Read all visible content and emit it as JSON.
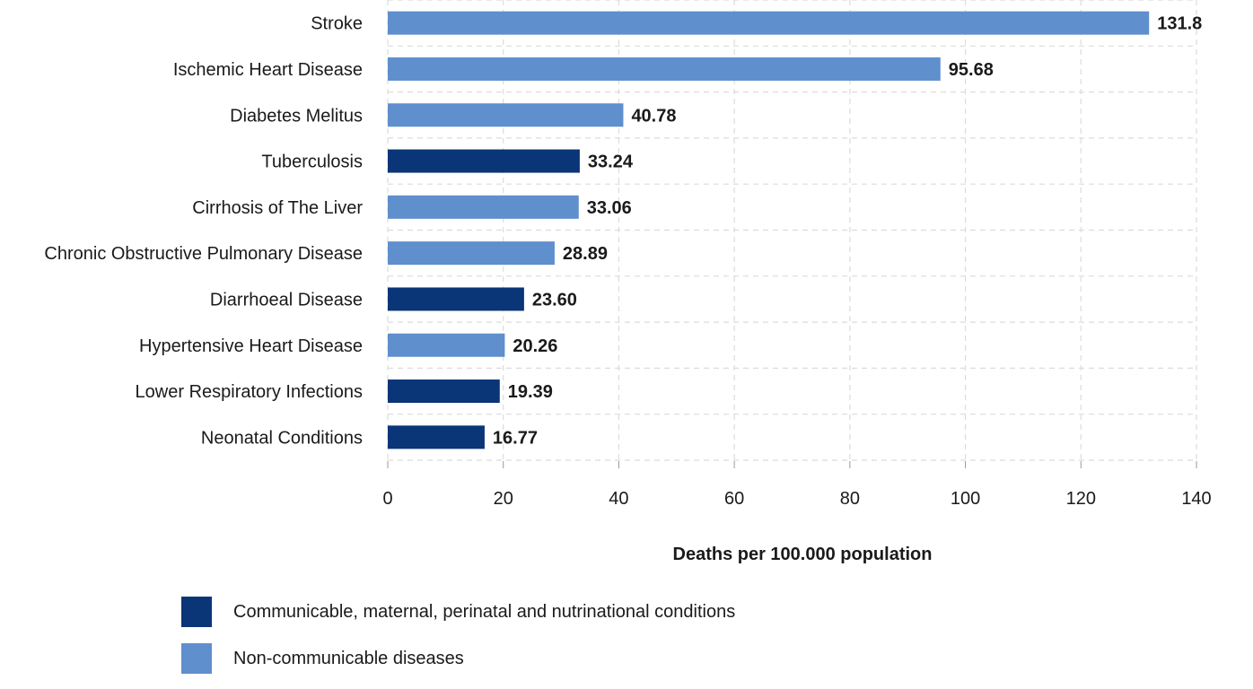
{
  "chart_data": {
    "type": "bar",
    "orientation": "horizontal",
    "categories": [
      "Stroke",
      "Ischemic Heart Disease",
      "Diabetes Melitus",
      "Tuberculosis",
      "Cirrhosis of The Liver",
      "Chronic  Obstructive Pulmonary Disease",
      "Diarrhoeal Disease",
      "Hypertensive Heart Disease",
      "Lower Respiratory Infections",
      "Neonatal Conditions"
    ],
    "values": [
      131.8,
      95.68,
      40.78,
      33.24,
      33.06,
      28.89,
      23.6,
      20.26,
      19.39,
      16.77
    ],
    "value_labels": [
      "131.8",
      "95.68",
      "40.78",
      "33.24",
      "33.06",
      "28.89",
      "23.60",
      "20.26",
      "19.39",
      "16.77"
    ],
    "groups": [
      "non-communicable",
      "non-communicable",
      "non-communicable",
      "communicable",
      "non-communicable",
      "non-communicable",
      "communicable",
      "non-communicable",
      "communicable",
      "communicable"
    ],
    "xlabel": "Deaths per 100.000 population",
    "xlim": [
      0,
      140
    ],
    "xticks": [
      0,
      20,
      40,
      60,
      80,
      100,
      120,
      140
    ],
    "grid": true,
    "legend_position": "bottom-left",
    "legend": [
      {
        "key": "communicable",
        "label": "Communicable, maternal, perinatal and nutrinational conditions",
        "color": "#0a3577"
      },
      {
        "key": "non-communicable",
        "label": "Non-communicable diseases",
        "color": "#5f8fcd"
      }
    ]
  }
}
